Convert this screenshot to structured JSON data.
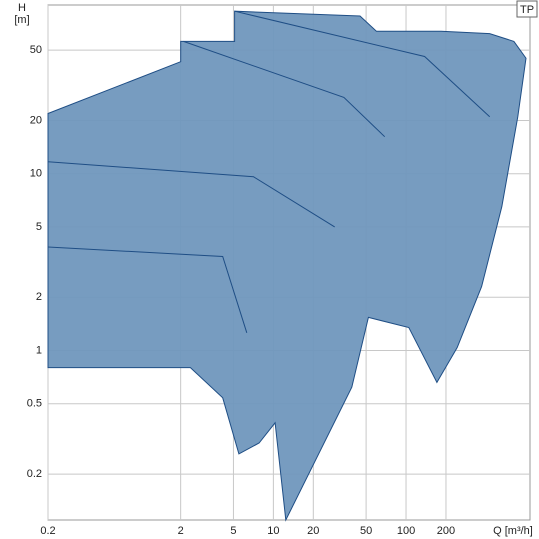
{
  "chart_data": {
    "type": "area",
    "y_label": "H",
    "y_unit": "[m]",
    "x_label": "Q [m³/h]",
    "badge": "TP",
    "log_x": true,
    "log_y": true,
    "grid": true,
    "xlim": [
      0.2,
      860
    ],
    "ylim": [
      0.11,
      90
    ],
    "xticks": [
      0.2,
      2,
      5,
      10,
      20,
      50,
      100,
      200
    ],
    "yticks": [
      0.2,
      0.5,
      1,
      2,
      5,
      10,
      20,
      50
    ],
    "fill": "#7097bd",
    "stroke": "#1f4e85",
    "series": [
      {
        "x": [
          0.2,
          2,
          2,
          5.1,
          5.1,
          45,
          59.8,
          184,
          427,
          650,
          803,
          696,
          527,
          371,
          243,
          171,
          105,
          52,
          39,
          12.4,
          10.3,
          7.8,
          5.5,
          4.15,
          2.37,
          0.2
        ],
        "values": [
          21.9,
          43,
          56,
          56,
          83,
          78,
          64,
          64,
          62,
          56,
          45,
          21,
          6.5,
          2.3,
          1.04,
          0.66,
          1.35,
          1.54,
          0.62,
          0.11,
          0.39,
          0.3,
          0.26,
          0.54,
          0.8,
          0.8
        ]
      },
      {
        "x": [
          0.2,
          7.1,
          29
        ],
        "values": [
          11.7,
          9.6,
          5
        ]
      },
      {
        "x": [
          2.1,
          34,
          69
        ],
        "values": [
          56,
          27,
          16.2
        ]
      },
      {
        "x": [
          5.1,
          138,
          427
        ],
        "values": [
          83,
          46,
          21
        ]
      },
      {
        "x": [
          0.2,
          4.15,
          6.3
        ],
        "values": [
          3.85,
          3.4,
          1.26
        ]
      }
    ]
  }
}
